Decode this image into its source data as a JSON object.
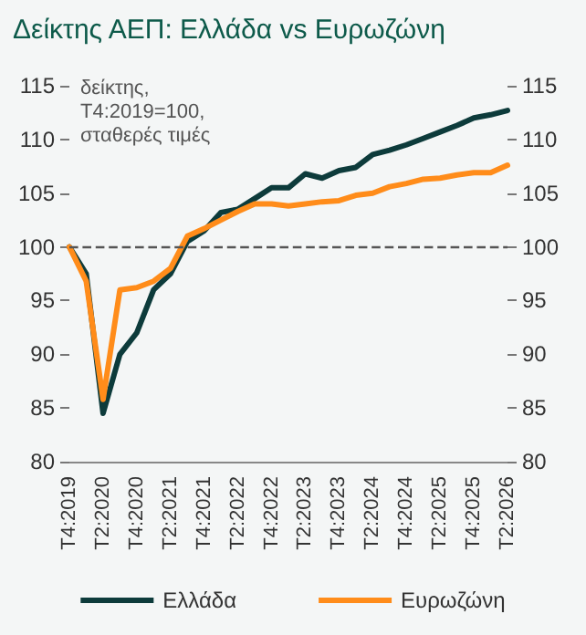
{
  "chart_data": {
    "type": "line",
    "title": "Δείκτης ΑΕΠ: Ελλάδα vs Ευρωζώνη",
    "annotations": [
      "δείκτης,\nΤ4:2019=100,\nσταθερές τιμές"
    ],
    "categories": [
      "T4:2019",
      null,
      "T2:2020",
      null,
      "T4:2020",
      null,
      "T2:2021",
      null,
      "T4:2021",
      null,
      "T2:2022",
      null,
      "T4:2022",
      null,
      "T2:2023",
      null,
      "T4:2023",
      null,
      "T2:2024",
      null,
      "T4:2024",
      null,
      "T2:2025",
      null,
      "T4:2025",
      null,
      "T2:2026"
    ],
    "series": [
      {
        "name": "Ελλάδα",
        "color": "#0d3b3b",
        "values": [
          100,
          97.5,
          84.5,
          90,
          92,
          96,
          97.5,
          100.5,
          101.5,
          103.2,
          103.5,
          104.5,
          105.5,
          105.5,
          106.8,
          106.4,
          107.1,
          107.4,
          108.6,
          109,
          109.5,
          110.1,
          110.7,
          111.3,
          112,
          112.3,
          112.7
        ]
      },
      {
        "name": "Ευρωζώνη",
        "color": "#ff8c1a",
        "values": [
          100,
          96.8,
          85.8,
          96,
          96.2,
          96.8,
          98,
          101,
          101.7,
          102.5,
          103.3,
          104,
          104,
          103.8,
          104,
          104.2,
          104.3,
          104.8,
          105,
          105.6,
          105.9,
          106.3,
          106.4,
          106.7,
          106.9,
          106.9,
          107.6
        ]
      }
    ],
    "ylim": [
      80,
      115
    ],
    "yticks": [
      80,
      85,
      90,
      95,
      100,
      105,
      110,
      115
    ],
    "y2lim": [
      80,
      115
    ],
    "y2ticks": [
      80,
      85,
      90,
      95,
      100,
      105,
      110,
      115
    ],
    "ref_lines": [
      {
        "axis": "y",
        "value": 100,
        "label": null,
        "color": "#555555",
        "line_style": "dashed"
      }
    ],
    "grid": false,
    "legend": "bottom",
    "marker": "none",
    "line_style": "solid"
  }
}
